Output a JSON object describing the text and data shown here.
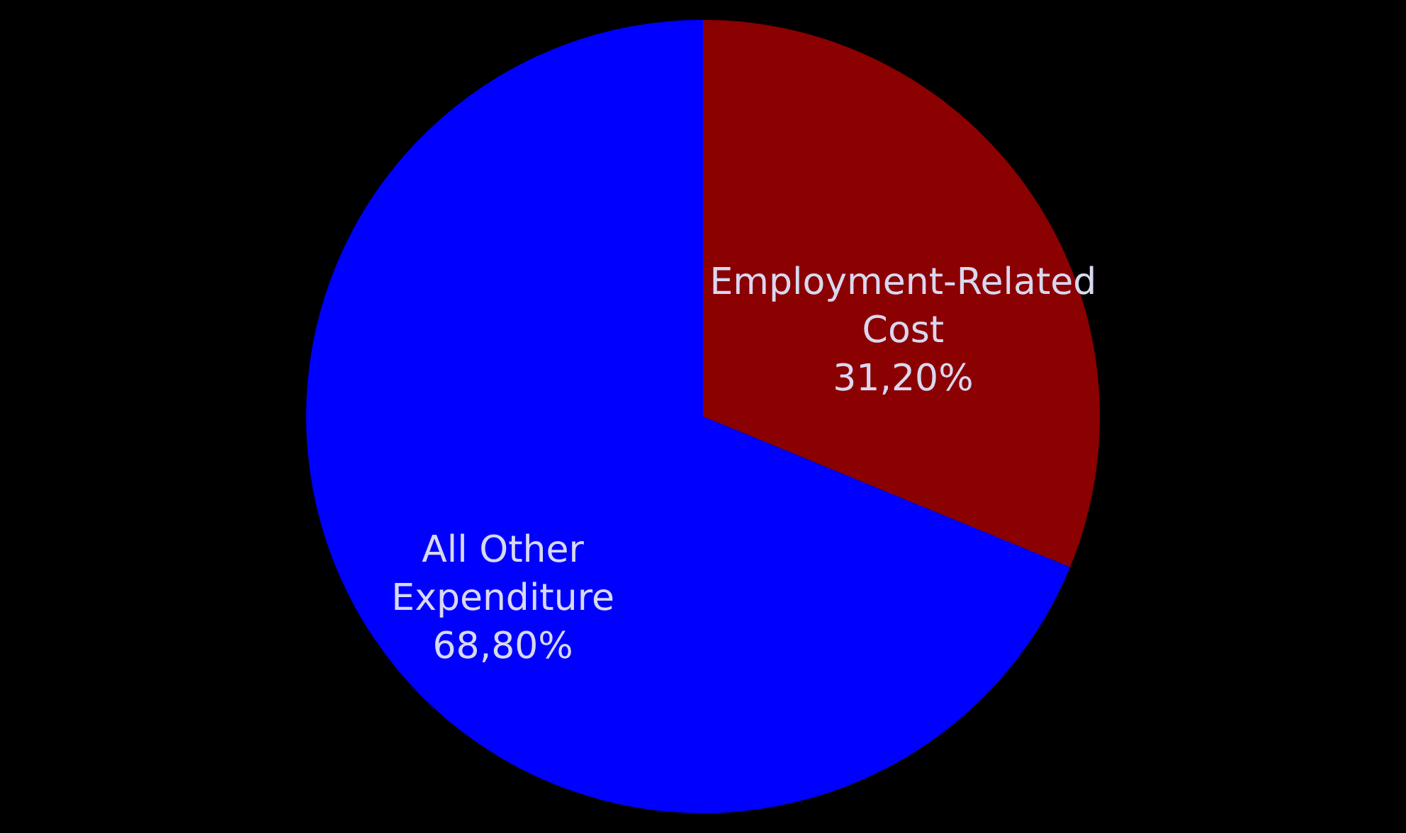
{
  "chart_data": {
    "type": "pie",
    "categories": [
      "Employment-Related Cost",
      "All Other Expenditure"
    ],
    "values": [
      31.2,
      68.8
    ],
    "colors": [
      "#8b0000",
      "#0000ff"
    ],
    "value_labels": [
      "31,20%",
      "68,80%"
    ],
    "legend": false
  }
}
